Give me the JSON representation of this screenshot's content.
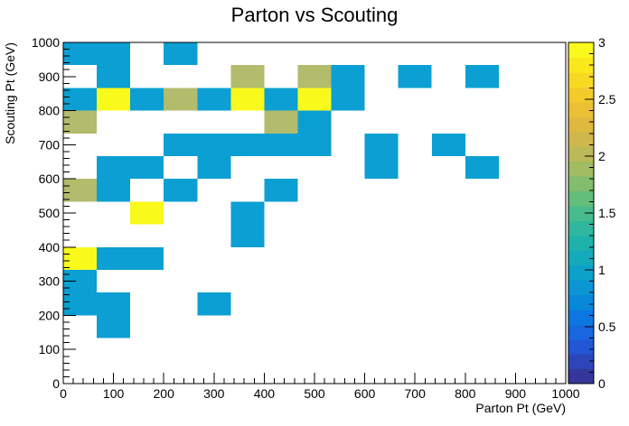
{
  "chart_data": {
    "type": "heatmap",
    "title": "Parton vs Scouting",
    "xlabel": "Parton Pt (GeV)",
    "ylabel": "Scouting Pt (GeV)",
    "xlim": [
      0,
      1000
    ],
    "ylim": [
      0,
      1000
    ],
    "bin_width": 66.6667,
    "x_ticks": [
      0,
      100,
      200,
      300,
      400,
      500,
      600,
      700,
      800,
      900,
      1000
    ],
    "y_ticks": [
      0,
      100,
      200,
      300,
      400,
      500,
      600,
      700,
      800,
      900,
      1000
    ],
    "z_range": [
      0,
      3
    ],
    "colorbar_ticks": [
      0,
      0.5,
      1,
      1.5,
      2,
      2.5,
      3
    ],
    "colorbar_labels": [
      "0",
      "0.5",
      "1",
      "1.5",
      "2",
      "2.5",
      "3"
    ],
    "colors": {
      "1": "#0b9fd3",
      "2": "#b3bb6c",
      "3": "#f9f91c"
    },
    "colorbar_steps": [
      "#35359b",
      "#2c46b9",
      "#2156d4",
      "#1767de",
      "#0c77e0",
      "#0888d9",
      "#0b96d3",
      "#0ca1c9",
      "#13aabc",
      "#1fb2ad",
      "#2fb89d",
      "#47bb8c",
      "#63bd7b",
      "#81bd6d",
      "#a1bc61",
      "#bbb958",
      "#d0b74c",
      "#dfb93f",
      "#ebc035",
      "#f2cb2b",
      "#f8d922",
      "#fae81d",
      "#f9f91c"
    ],
    "bins": [
      {
        "x": 33.3,
        "y": 966.7,
        "z": 1
      },
      {
        "x": 100,
        "y": 966.7,
        "z": 1
      },
      {
        "x": 233.3,
        "y": 966.7,
        "z": 1
      },
      {
        "x": 100,
        "y": 900,
        "z": 1
      },
      {
        "x": 366.7,
        "y": 900,
        "z": 2
      },
      {
        "x": 500,
        "y": 900,
        "z": 2
      },
      {
        "x": 566.7,
        "y": 900,
        "z": 1
      },
      {
        "x": 700,
        "y": 900,
        "z": 1
      },
      {
        "x": 833.3,
        "y": 900,
        "z": 1
      },
      {
        "x": 33.3,
        "y": 833.3,
        "z": 1
      },
      {
        "x": 100,
        "y": 833.3,
        "z": 3
      },
      {
        "x": 166.7,
        "y": 833.3,
        "z": 1
      },
      {
        "x": 233.3,
        "y": 833.3,
        "z": 2
      },
      {
        "x": 300,
        "y": 833.3,
        "z": 1
      },
      {
        "x": 366.7,
        "y": 833.3,
        "z": 3
      },
      {
        "x": 433.3,
        "y": 833.3,
        "z": 1
      },
      {
        "x": 500,
        "y": 833.3,
        "z": 3
      },
      {
        "x": 566.7,
        "y": 833.3,
        "z": 1
      },
      {
        "x": 33.3,
        "y": 766.7,
        "z": 2
      },
      {
        "x": 433.3,
        "y": 766.7,
        "z": 2
      },
      {
        "x": 500,
        "y": 766.7,
        "z": 1
      },
      {
        "x": 233.3,
        "y": 700,
        "z": 1
      },
      {
        "x": 300,
        "y": 700,
        "z": 1
      },
      {
        "x": 366.7,
        "y": 700,
        "z": 1
      },
      {
        "x": 433.3,
        "y": 700,
        "z": 1
      },
      {
        "x": 500,
        "y": 700,
        "z": 1
      },
      {
        "x": 633.3,
        "y": 700,
        "z": 1
      },
      {
        "x": 766.7,
        "y": 700,
        "z": 1
      },
      {
        "x": 100,
        "y": 633.3,
        "z": 1
      },
      {
        "x": 166.7,
        "y": 633.3,
        "z": 1
      },
      {
        "x": 300,
        "y": 633.3,
        "z": 1
      },
      {
        "x": 633.3,
        "y": 633.3,
        "z": 1
      },
      {
        "x": 833.3,
        "y": 633.3,
        "z": 1
      },
      {
        "x": 33.3,
        "y": 566.7,
        "z": 2
      },
      {
        "x": 100,
        "y": 566.7,
        "z": 1
      },
      {
        "x": 233.3,
        "y": 566.7,
        "z": 1
      },
      {
        "x": 433.3,
        "y": 566.7,
        "z": 1
      },
      {
        "x": 166.7,
        "y": 500,
        "z": 3
      },
      {
        "x": 366.7,
        "y": 500,
        "z": 1
      },
      {
        "x": 366.7,
        "y": 433.3,
        "z": 1
      },
      {
        "x": 33.3,
        "y": 366.7,
        "z": 3
      },
      {
        "x": 100,
        "y": 366.7,
        "z": 1
      },
      {
        "x": 166.7,
        "y": 366.7,
        "z": 1
      },
      {
        "x": 33.3,
        "y": 300,
        "z": 1
      },
      {
        "x": 33.3,
        "y": 233.3,
        "z": 1
      },
      {
        "x": 100,
        "y": 233.3,
        "z": 1
      },
      {
        "x": 300,
        "y": 233.3,
        "z": 1
      },
      {
        "x": 100,
        "y": 166.7,
        "z": 1
      }
    ]
  }
}
